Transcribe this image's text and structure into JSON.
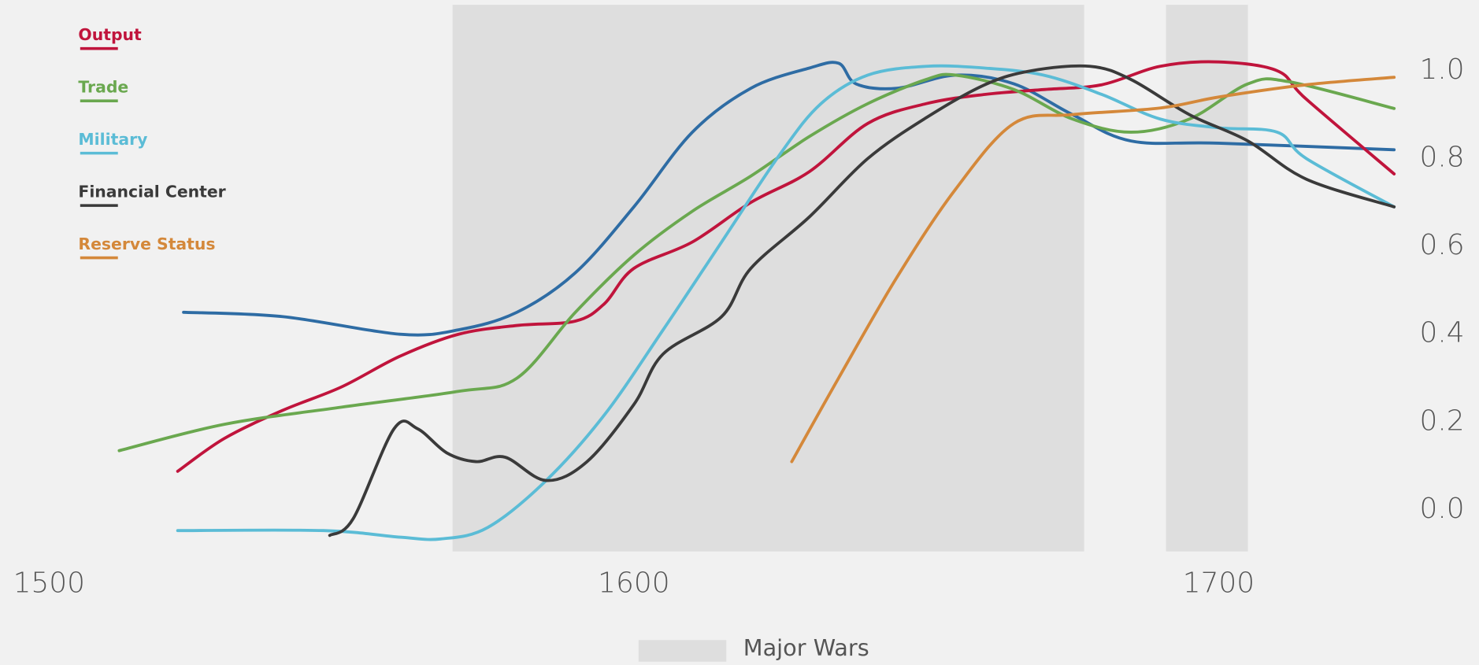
{
  "chart_data": {
    "type": "line",
    "xlim": [
      1495,
      1730
    ],
    "xticks": [
      1500,
      1600,
      1700
    ],
    "ylim": [
      -0.1,
      1.15
    ],
    "yticks": [
      {
        "value": 0,
        "label": "0.0"
      },
      0.2,
      0.4,
      0.6,
      0.8,
      {
        "value": 1,
        "label": "1.0"
      }
    ],
    "wars": [
      {
        "start": 1569,
        "end": 1677
      },
      {
        "start": 1691,
        "end": 1705
      }
    ],
    "wars_label": "Major Wars",
    "wars_color": "#dedede",
    "series": [
      {
        "name": null,
        "color": "#2e6ca4",
        "x": [
          1523,
          1540,
          1560,
          1570,
          1580,
          1590,
          1600,
          1610,
          1620,
          1630,
          1635,
          1638,
          1645,
          1655,
          1665,
          1675,
          1685,
          1700,
          1730
        ],
        "values": [
          0.45,
          0.44,
          0.4,
          0.41,
          0.45,
          0.54,
          0.69,
          0.86,
          0.96,
          1.006,
          1.017,
          0.97,
          0.96,
          0.99,
          0.97,
          0.9,
          0.84,
          0.835,
          0.82
        ]
      },
      {
        "name": "Output",
        "color": "#c0143c",
        "x": [
          1522,
          1530,
          1540,
          1550,
          1560,
          1570,
          1580,
          1590,
          1595,
          1600,
          1610,
          1620,
          1630,
          1640,
          1650,
          1660,
          1670,
          1680,
          1690,
          1700,
          1710,
          1715,
          1730
        ],
        "values": [
          0.088,
          0.163,
          0.227,
          0.28,
          0.35,
          0.4,
          0.42,
          0.43,
          0.47,
          0.55,
          0.61,
          0.7,
          0.77,
          0.88,
          0.925,
          0.946,
          0.957,
          0.968,
          1.01,
          1.02,
          1.0,
          0.935,
          0.765
        ]
      },
      {
        "name": "Trade",
        "color": "#6aa84f",
        "x": [
          1512,
          1530,
          1550,
          1570,
          1580,
          1590,
          1600,
          1610,
          1620,
          1630,
          1640,
          1650,
          1655,
          1665,
          1675,
          1685,
          1695,
          1705,
          1712,
          1730
        ],
        "values": [
          0.135,
          0.195,
          0.234,
          0.27,
          0.3,
          0.45,
          0.58,
          0.68,
          0.76,
          0.85,
          0.925,
          0.98,
          0.99,
          0.957,
          0.89,
          0.86,
          0.89,
          0.97,
          0.975,
          0.914
        ]
      },
      {
        "name": "Military",
        "color": "#5bbcd6",
        "x": [
          1522,
          1547,
          1560,
          1567,
          1575,
          1585,
          1595,
          1605,
          1615,
          1625,
          1632,
          1640,
          1650,
          1660,
          1670,
          1680,
          1690,
          1700,
          1710,
          1715,
          1730
        ],
        "values": [
          -0.047,
          -0.047,
          -0.062,
          -0.066,
          -0.04,
          0.067,
          0.217,
          0.41,
          0.61,
          0.81,
          0.925,
          0.99,
          1.01,
          1.006,
          0.99,
          0.946,
          0.89,
          0.87,
          0.86,
          0.8,
          0.69
        ]
      },
      {
        "name": "Financial Center",
        "color": "#3a3a3a",
        "x": [
          1548,
          1552,
          1559,
          1563,
          1568,
          1573,
          1578,
          1585,
          1592,
          1600,
          1605,
          1615,
          1620,
          1630,
          1640,
          1650,
          1660,
          1668,
          1678,
          1685,
          1695,
          1705,
          1715,
          1730
        ],
        "values": [
          -0.058,
          -0.02,
          0.185,
          0.185,
          0.13,
          0.11,
          0.12,
          0.067,
          0.11,
          0.24,
          0.355,
          0.44,
          0.55,
          0.667,
          0.8,
          0.893,
          0.968,
          1.0,
          1.01,
          0.98,
          0.9,
          0.84,
          0.753,
          0.69
        ]
      },
      {
        "name": "Reserve Status",
        "color": "#d4883a",
        "x": [
          1627,
          1635,
          1645,
          1655,
          1665,
          1675,
          1690,
          1700,
          1715,
          1730
        ],
        "values": [
          0.11,
          0.3,
          0.53,
          0.73,
          0.88,
          0.9,
          0.915,
          0.94,
          0.968,
          0.985
        ]
      }
    ]
  }
}
